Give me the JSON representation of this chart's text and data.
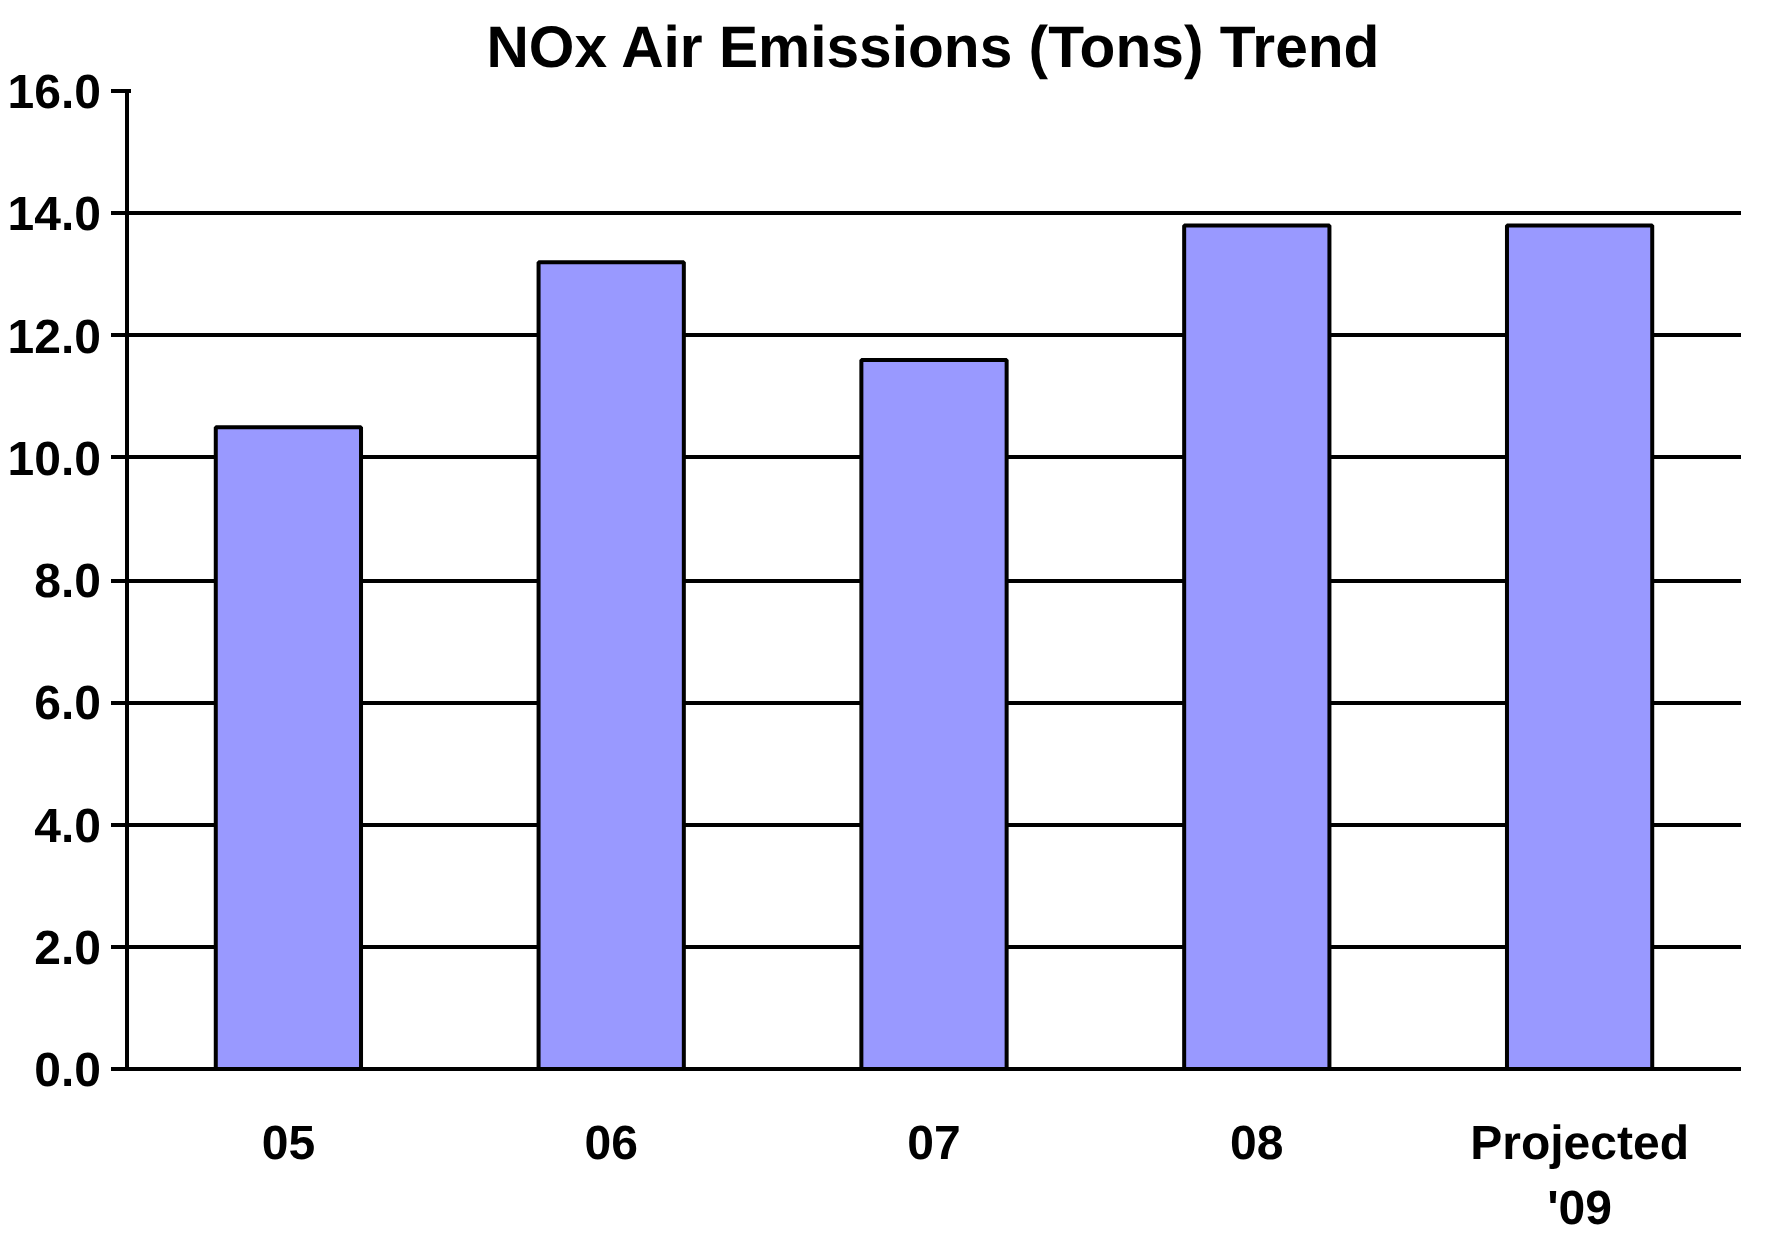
{
  "chart_data": {
    "type": "bar",
    "title": "NOx Air Emissions (Tons) Trend",
    "categories": [
      "05",
      "06",
      "07",
      "08",
      "Projected\n'09"
    ],
    "values": [
      10.5,
      13.2,
      11.6,
      13.8,
      13.8
    ],
    "color": "#9999ff",
    "ylim": [
      0,
      16
    ],
    "yticks": [
      {
        "value": 0,
        "label": "0.0"
      },
      {
        "value": 2,
        "label": "2.0"
      },
      {
        "value": 4,
        "label": "4.0"
      },
      {
        "value": 6,
        "label": "6.0"
      },
      {
        "value": 8,
        "label": "8.0"
      },
      {
        "value": 10,
        "label": "10.0"
      },
      {
        "value": 12,
        "label": "12.0"
      },
      {
        "value": 14,
        "label": "14.0"
      },
      {
        "value": 16,
        "label": "16.0"
      }
    ],
    "grid": "y"
  }
}
